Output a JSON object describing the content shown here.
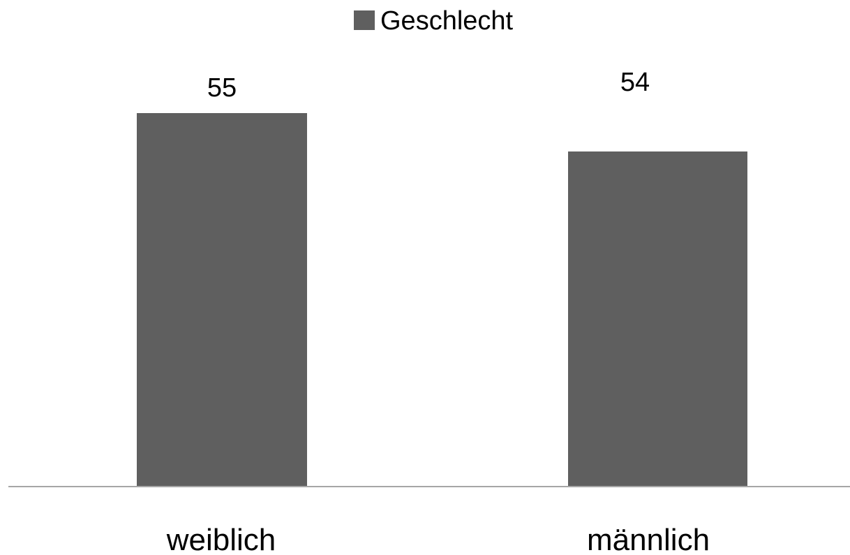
{
  "chart_data": {
    "type": "bar",
    "categories": [
      "weiblich",
      "männlich"
    ],
    "series": [
      {
        "name": "Geschlecht",
        "values": [
          55,
          54
        ]
      }
    ],
    "data_labels": [
      "55",
      "54"
    ],
    "legend_position": "top-center",
    "grid": false,
    "bar_color": "#5f5f5f",
    "axis_color": "#a6a6a6"
  }
}
